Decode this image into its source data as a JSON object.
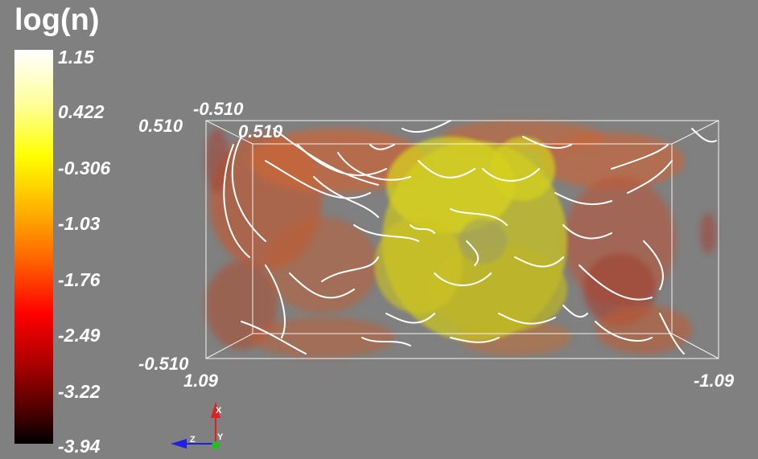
{
  "colorbar": {
    "title": "log(n)",
    "ticks": [
      "1.15",
      "0.422",
      "-0.306",
      "-1.03",
      "-1.76",
      "-2.49",
      "-3.22",
      "-3.94"
    ]
  },
  "axes": {
    "top_back_z": "-0.510",
    "top_left_y": "0.510",
    "top_inner_y": "0.510",
    "bottom_left_y": "-0.510",
    "bottom_left_x": "1.09",
    "bottom_right_x": "-1.09"
  },
  "orientation": {
    "x": "X",
    "y": "Y",
    "z": "Z"
  },
  "colors": {
    "background": "#808080",
    "isosurface_orange": "#d9602a",
    "isosurface_yellow": "#d4d21c",
    "streamline": "#ffffff",
    "x_axis": "#e02020",
    "y_axis": "#20c020",
    "z_axis": "#2020e0"
  }
}
